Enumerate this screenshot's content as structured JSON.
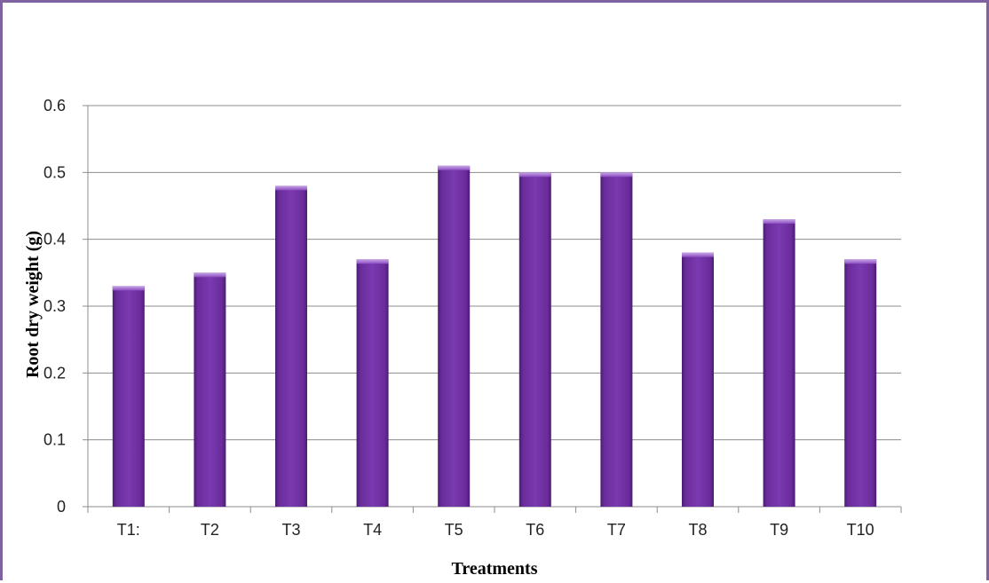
{
  "chart_data": {
    "type": "bar",
    "title": "",
    "xlabel": "Treatments",
    "ylabel": "Root dry weight (g)",
    "categories": [
      "T1:",
      "T2",
      "T3",
      "T4",
      "T5",
      "T6",
      "T7",
      "T8",
      "T9",
      "T10"
    ],
    "values": [
      0.33,
      0.35,
      0.48,
      0.37,
      0.51,
      0.5,
      0.5,
      0.38,
      0.43,
      0.37
    ],
    "ylim": [
      0,
      0.6
    ],
    "yticks": [
      "0",
      "0.1",
      "0.2",
      "0.3",
      "0.4",
      "0.5",
      "0.6"
    ],
    "grid": true,
    "legend": "none",
    "bar_color": "#7030a0",
    "frame_color": "#7f63a1"
  }
}
